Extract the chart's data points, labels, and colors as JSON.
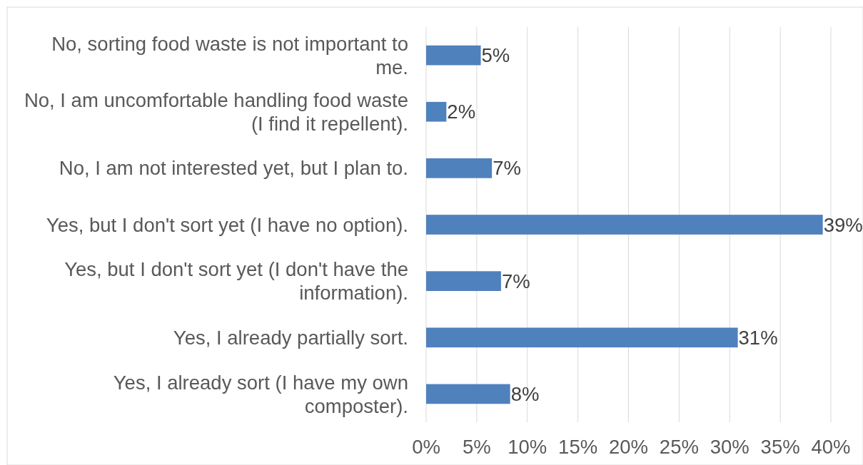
{
  "chart_data": {
    "type": "bar",
    "orientation": "horizontal",
    "categories": [
      "No, sorting food waste is not important to me.",
      "No, I am uncomfortable handling food waste (I find it repellent).",
      "No, I am not interested yet, but I plan to.",
      "Yes, but I don't sort yet (I have no option).",
      "Yes, but I don't sort yet (I don't have the information).",
      "Yes, I already partially sort.",
      "Yes, I already sort (I have my own composter)."
    ],
    "values": [
      5.4,
      2.0,
      6.5,
      39.2,
      7.4,
      30.8,
      8.3
    ],
    "value_labels": [
      "5%",
      "2%",
      "7%",
      "39%",
      "7%",
      "31%",
      "8%"
    ],
    "color": "#4f81bd",
    "xlim": [
      0,
      40
    ],
    "xticks": [
      {
        "value": 0,
        "label": "0%"
      },
      {
        "value": 5,
        "label": "5%"
      },
      {
        "value": 10,
        "label": "10%"
      },
      {
        "value": 15,
        "label": "15%"
      },
      {
        "value": 20,
        "label": "20%"
      },
      {
        "value": 25,
        "label": "25%"
      },
      {
        "value": 30,
        "label": "30%"
      },
      {
        "value": 35,
        "label": "35%"
      },
      {
        "value": 40,
        "label": "40%"
      }
    ],
    "grid": "x"
  }
}
